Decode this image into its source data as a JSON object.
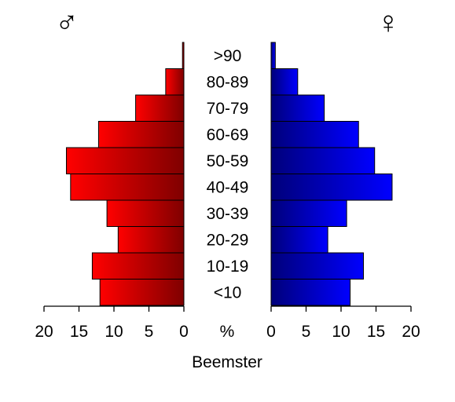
{
  "chart_data": {
    "type": "bar",
    "orientation": "horizontal",
    "layout": "population-pyramid",
    "title": "",
    "caption": "Beemster",
    "center_axis_label": "%",
    "categories": [
      "<10",
      "10-19",
      "20-29",
      "30-39",
      "40-49",
      "50-59",
      "60-69",
      "70-79",
      "80-89",
      ">90"
    ],
    "series": [
      {
        "symbol": "♂",
        "color": "#ff0000",
        "color_inner": "#7f0000",
        "values": [
          12.0,
          13.1,
          9.4,
          11.0,
          16.2,
          16.8,
          12.2,
          6.9,
          2.6,
          0.2
        ]
      },
      {
        "symbol": "♀",
        "color": "#0000ff",
        "color_inner": "#00007a",
        "values": [
          11.3,
          13.2,
          8.1,
          10.8,
          17.3,
          14.8,
          12.5,
          7.6,
          3.8,
          0.6
        ]
      }
    ],
    "left_ticks": [
      "20",
      "15",
      "10",
      "5",
      "0"
    ],
    "right_ticks": [
      "0",
      "5",
      "10",
      "15",
      "20"
    ],
    "xlim": [
      0,
      20
    ],
    "grid": false
  }
}
